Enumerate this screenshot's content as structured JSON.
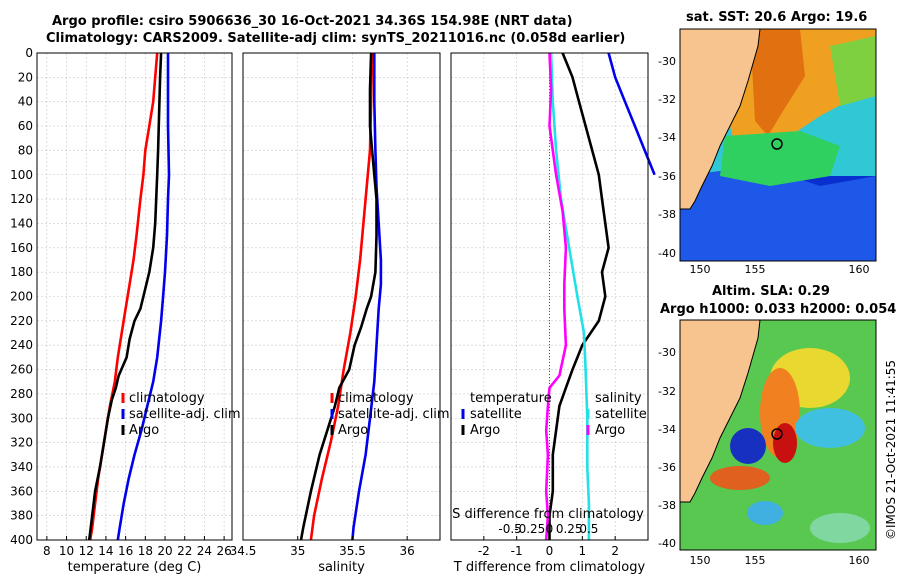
{
  "header": {
    "title_line1": "Argo profile: csiro 5906636_30 16-Oct-2021 34.36S 154.98E (NRT data)",
    "title_line2": "Climatology: CARS2009. Satellite-adj clim: synTS_20211016.nc (0.058d earlier)"
  },
  "side_label": "©IMOS 21-Oct-2021 11:41:55",
  "colors": {
    "red": "#ff0000",
    "blue": "#0000ee",
    "black": "#000000",
    "cyan": "#22e0e8",
    "magenta": "#ff00ff",
    "land": "#f7c38e"
  },
  "chart_data": [
    {
      "type": "line",
      "id": "temperature",
      "xlabel": "temperature (deg C)",
      "ylabel": "",
      "xlim": [
        7,
        26.8
      ],
      "ylim": [
        0,
        400
      ],
      "xticks": [
        "8",
        "10",
        "12",
        "14",
        "16",
        "18",
        "20",
        "22",
        "24",
        "26"
      ],
      "xtick_values": [
        8,
        10,
        12,
        14,
        16,
        18,
        20,
        22,
        24,
        26
      ],
      "yticks": [
        "0",
        "20",
        "40",
        "60",
        "80",
        "100",
        "120",
        "140",
        "160",
        "180",
        "200",
        "220",
        "240",
        "260",
        "280",
        "300",
        "320",
        "340",
        "360",
        "380",
        "400"
      ],
      "ytick_values": [
        0,
        20,
        40,
        60,
        80,
        100,
        120,
        140,
        160,
        180,
        200,
        220,
        240,
        260,
        280,
        300,
        320,
        340,
        360,
        380,
        400
      ],
      "legend": [
        "climatology",
        "satellite-adj. clim",
        "Argo"
      ],
      "series": [
        {
          "name": "climatology",
          "color": "red",
          "points": [
            [
              19.2,
              0
            ],
            [
              19.0,
              20
            ],
            [
              18.8,
              40
            ],
            [
              18.4,
              60
            ],
            [
              18.0,
              80
            ],
            [
              17.8,
              100
            ],
            [
              17.5,
              120
            ],
            [
              17.1,
              150
            ],
            [
              16.8,
              170
            ],
            [
              16.4,
              190
            ],
            [
              16.0,
              210
            ],
            [
              15.6,
              230
            ],
            [
              15.2,
              250
            ],
            [
              14.9,
              270
            ],
            [
              14.4,
              290
            ],
            [
              14.0,
              310
            ],
            [
              13.6,
              330
            ],
            [
              13.2,
              350
            ],
            [
              12.9,
              370
            ],
            [
              12.6,
              390
            ],
            [
              12.4,
              400
            ]
          ]
        },
        {
          "name": "satellite-adj. clim",
          "color": "blue",
          "points": [
            [
              20.3,
              0
            ],
            [
              20.3,
              20
            ],
            [
              20.3,
              60
            ],
            [
              20.4,
              100
            ],
            [
              20.3,
              120
            ],
            [
              20.2,
              150
            ],
            [
              20.0,
              180
            ],
            [
              19.8,
              200
            ],
            [
              19.6,
              220
            ],
            [
              19.2,
              250
            ],
            [
              18.8,
              270
            ],
            [
              18.2,
              290
            ],
            [
              17.6,
              310
            ],
            [
              16.9,
              330
            ],
            [
              16.3,
              350
            ],
            [
              15.8,
              370
            ],
            [
              15.4,
              390
            ],
            [
              15.2,
              400
            ]
          ]
        },
        {
          "name": "Argo",
          "color": "black",
          "points": [
            [
              19.6,
              0
            ],
            [
              19.5,
              20
            ],
            [
              19.4,
              50
            ],
            [
              19.3,
              80
            ],
            [
              19.2,
              100
            ],
            [
              19.1,
              120
            ],
            [
              19.0,
              140
            ],
            [
              18.8,
              160
            ],
            [
              18.4,
              180
            ],
            [
              17.8,
              200
            ],
            [
              17.5,
              210
            ],
            [
              16.9,
              220
            ],
            [
              16.4,
              235
            ],
            [
              16.1,
              250
            ],
            [
              15.3,
              265
            ],
            [
              15.0,
              275
            ],
            [
              14.6,
              285
            ],
            [
              14.2,
              300
            ],
            [
              13.8,
              320
            ],
            [
              13.4,
              340
            ],
            [
              12.9,
              360
            ],
            [
              12.6,
              380
            ],
            [
              12.3,
              400
            ]
          ]
        }
      ]
    },
    {
      "type": "line",
      "id": "salinity",
      "xlabel": "salinity",
      "xlim": [
        34.5,
        36.3
      ],
      "ylim": [
        0,
        400
      ],
      "xticks": [
        "34.5",
        "35",
        "35.5",
        "36"
      ],
      "xtick_values": [
        34.5,
        35,
        35.5,
        36
      ],
      "legend": [
        "climatology",
        "satellite-adj. clim",
        "Argo"
      ],
      "series": [
        {
          "name": "climatology",
          "color": "red",
          "points": [
            [
              35.68,
              0
            ],
            [
              35.67,
              40
            ],
            [
              35.66,
              80
            ],
            [
              35.63,
              110
            ],
            [
              35.6,
              140
            ],
            [
              35.57,
              170
            ],
            [
              35.53,
              200
            ],
            [
              35.48,
              230
            ],
            [
              35.42,
              260
            ],
            [
              35.37,
              290
            ],
            [
              35.3,
              320
            ],
            [
              35.22,
              350
            ],
            [
              35.15,
              380
            ],
            [
              35.12,
              400
            ]
          ]
        },
        {
          "name": "satellite-adj. clim",
          "color": "blue",
          "points": [
            [
              35.7,
              0
            ],
            [
              35.7,
              40
            ],
            [
              35.71,
              80
            ],
            [
              35.72,
              110
            ],
            [
              35.74,
              140
            ],
            [
              35.76,
              170
            ],
            [
              35.76,
              190
            ],
            [
              35.74,
              210
            ],
            [
              35.72,
              240
            ],
            [
              35.7,
              270
            ],
            [
              35.66,
              300
            ],
            [
              35.62,
              330
            ],
            [
              35.56,
              360
            ],
            [
              35.51,
              390
            ],
            [
              35.5,
              400
            ]
          ]
        },
        {
          "name": "Argo",
          "color": "black",
          "points": [
            [
              35.67,
              0
            ],
            [
              35.66,
              30
            ],
            [
              35.66,
              60
            ],
            [
              35.68,
              80
            ],
            [
              35.7,
              100
            ],
            [
              35.72,
              120
            ],
            [
              35.72,
              150
            ],
            [
              35.71,
              180
            ],
            [
              35.67,
              200
            ],
            [
              35.63,
              210
            ],
            [
              35.58,
              225
            ],
            [
              35.52,
              240
            ],
            [
              35.47,
              260
            ],
            [
              35.38,
              275
            ],
            [
              35.34,
              290
            ],
            [
              35.27,
              310
            ],
            [
              35.2,
              330
            ],
            [
              35.12,
              360
            ],
            [
              35.05,
              390
            ],
            [
              35.03,
              400
            ]
          ]
        }
      ]
    },
    {
      "type": "line",
      "id": "difference",
      "xlabel": "T difference from climatology",
      "xlabel_secondary": "S difference from climatology",
      "xlim": [
        -3,
        3
      ],
      "ylim": [
        0,
        400
      ],
      "xticks": [
        "-2",
        "-1",
        "0",
        "1",
        "2"
      ],
      "xtick_values": [
        -2,
        -1,
        0,
        1,
        2
      ],
      "secondary_xticks": [
        "-0.5",
        "-0.25",
        "0",
        "0.25",
        "0.5"
      ],
      "secondary_xtick_values": [
        -1.2,
        -0.6,
        0,
        0.6,
        1.2
      ],
      "legend_left": [
        "temperature",
        "satellite",
        "Argo"
      ],
      "legend_right": [
        "salinity",
        "satellite",
        "Argo"
      ],
      "series": [
        {
          "name": "T satellite",
          "color": "blue",
          "points": [
            [
              1.8,
              0
            ],
            [
              2.0,
              20
            ],
            [
              2.3,
              40
            ],
            [
              2.6,
              60
            ],
            [
              2.9,
              80
            ],
            [
              3.2,
              100
            ]
          ]
        },
        {
          "name": "T Argo",
          "color": "black",
          "points": [
            [
              0.4,
              0
            ],
            [
              0.7,
              20
            ],
            [
              0.9,
              40
            ],
            [
              1.1,
              60
            ],
            [
              1.3,
              80
            ],
            [
              1.5,
              100
            ],
            [
              1.6,
              120
            ],
            [
              1.7,
              140
            ],
            [
              1.8,
              160
            ],
            [
              1.6,
              180
            ],
            [
              1.7,
              200
            ],
            [
              1.5,
              220
            ],
            [
              1.0,
              240
            ],
            [
              0.7,
              260
            ],
            [
              0.5,
              275
            ],
            [
              0.3,
              290
            ],
            [
              0.2,
              310
            ],
            [
              0.1,
              330
            ],
            [
              0.1,
              360
            ],
            [
              0.0,
              380
            ],
            [
              0.0,
              400
            ]
          ]
        },
        {
          "name": "S satellite",
          "color": "cyan",
          "points": [
            [
              0.05,
              0
            ],
            [
              0.1,
              40
            ],
            [
              0.2,
              80
            ],
            [
              0.35,
              120
            ],
            [
              0.6,
              160
            ],
            [
              0.85,
              200
            ],
            [
              1.05,
              230
            ],
            [
              1.1,
              260
            ],
            [
              1.15,
              300
            ],
            [
              1.15,
              340
            ],
            [
              1.2,
              370
            ],
            [
              1.2,
              400
            ]
          ]
        },
        {
          "name": "S Argo",
          "color": "magenta",
          "points": [
            [
              0.0,
              0
            ],
            [
              0.05,
              30
            ],
            [
              0.0,
              60
            ],
            [
              0.2,
              100
            ],
            [
              0.4,
              130
            ],
            [
              0.5,
              160
            ],
            [
              0.45,
              190
            ],
            [
              0.45,
              210
            ],
            [
              0.5,
              240
            ],
            [
              0.3,
              265
            ],
            [
              0.0,
              275
            ],
            [
              -0.05,
              290
            ],
            [
              -0.1,
              310
            ],
            [
              -0.05,
              330
            ],
            [
              -0.1,
              360
            ],
            [
              -0.05,
              380
            ],
            [
              -0.1,
              400
            ]
          ]
        }
      ]
    }
  ],
  "maps": [
    {
      "id": "sst-map",
      "title": "sat. SST: 20.6 Argo: 19.6",
      "xticks": [
        "150",
        "155",
        "160"
      ],
      "yticks": [
        "-30",
        "-32",
        "-34",
        "-36",
        "-38",
        "-40"
      ]
    },
    {
      "id": "sla-map",
      "title_line1": "Altim. SLA: 0.29",
      "title_line2": "Argo h1000: 0.033 h2000: 0.054",
      "xticks": [
        "150",
        "155",
        "160"
      ],
      "yticks": [
        "-30",
        "-32",
        "-34",
        "-36",
        "-38",
        "-40"
      ]
    }
  ]
}
